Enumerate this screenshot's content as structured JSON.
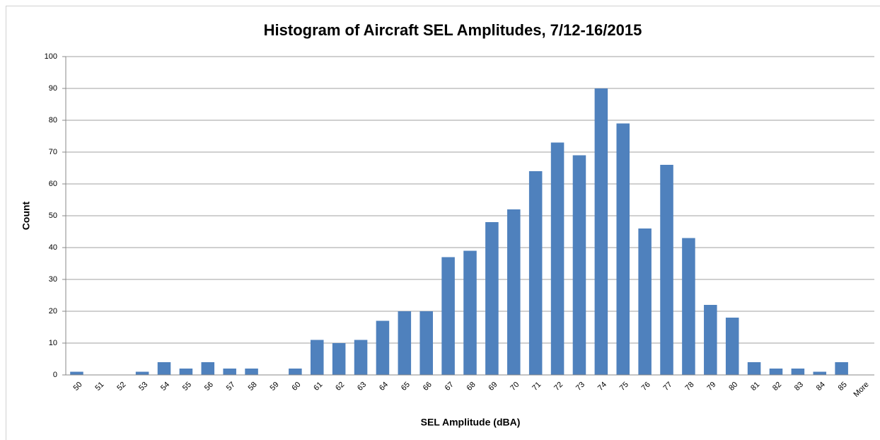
{
  "chart_data": {
    "type": "bar",
    "title": "Histogram of Aircraft SEL Amplitudes, 7/12-16/2015",
    "x_label": "SEL Amplitude (dBA)",
    "y_label": "Count",
    "categories": [
      "50",
      "51",
      "52",
      "53",
      "54",
      "55",
      "56",
      "57",
      "58",
      "59",
      "60",
      "61",
      "62",
      "63",
      "64",
      "65",
      "66",
      "67",
      "68",
      "69",
      "70",
      "71",
      "72",
      "73",
      "74",
      "75",
      "76",
      "77",
      "78",
      "79",
      "80",
      "81",
      "82",
      "83",
      "84",
      "85",
      "More"
    ],
    "values": [
      1,
      0,
      0,
      1,
      4,
      2,
      4,
      2,
      2,
      0,
      2,
      11,
      10,
      11,
      17,
      20,
      20,
      37,
      39,
      48,
      52,
      64,
      73,
      69,
      90,
      79,
      46,
      66,
      43,
      22,
      18,
      4,
      2,
      2,
      1,
      4,
      0
    ],
    "color": "#4f81bd",
    "ylim": [
      0,
      100
    ],
    "yticks": [
      0,
      10,
      20,
      30,
      40,
      50,
      60,
      70,
      80,
      90,
      100
    ],
    "grid": true
  }
}
